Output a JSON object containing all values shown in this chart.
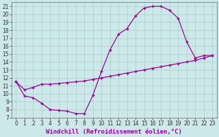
{
  "bg_color": "#cce8e8",
  "grid_color": "#aacccc",
  "line_color": "#990099",
  "xlabel": "Windchill (Refroidissement éolien,°C)",
  "xlabel_color": "#990099",
  "xlim": [
    -0.5,
    23.5
  ],
  "ylim": [
    7,
    21.5
  ],
  "xticks": [
    0,
    1,
    2,
    3,
    4,
    5,
    6,
    7,
    8,
    9,
    10,
    11,
    12,
    13,
    14,
    15,
    16,
    17,
    18,
    19,
    20,
    21,
    22,
    23
  ],
  "yticks": [
    7,
    8,
    9,
    10,
    11,
    12,
    13,
    14,
    15,
    16,
    17,
    18,
    19,
    20,
    21
  ],
  "curve1_x": [
    0,
    1,
    2,
    3,
    4,
    5,
    6,
    7,
    8,
    9,
    10,
    11,
    12,
    13,
    14,
    15,
    16,
    17,
    18,
    19,
    20,
    21
  ],
  "curve1_y": [
    11.5,
    9.7,
    9.5,
    8.8,
    8.0,
    7.9,
    7.8,
    7.5,
    7.5,
    9.8,
    12.8,
    15.5,
    17.5,
    18.2,
    19.8,
    20.8,
    21.0,
    21.0,
    20.5,
    19.5,
    16.5,
    14.5
  ],
  "curve2_x": [
    0,
    1,
    2,
    3,
    4,
    5,
    6,
    7,
    8,
    9,
    10,
    11,
    12,
    13,
    14,
    15,
    16,
    17,
    18,
    19,
    20,
    21,
    22,
    23
  ],
  "curve2_y": [
    11.5,
    10.5,
    10.8,
    11.2,
    11.2,
    11.3,
    11.4,
    11.5,
    11.6,
    11.8,
    12.0,
    12.2,
    12.4,
    12.6,
    12.8,
    13.0,
    13.2,
    13.4,
    13.6,
    13.8,
    14.0,
    14.2,
    14.5,
    14.8
  ],
  "curve3_x": [
    21,
    22,
    23
  ],
  "curve3_y": [
    14.5,
    14.8,
    14.8
  ],
  "tick_fontsize": 5.5,
  "xlabel_fontsize": 6.5,
  "xlabel_fontweight": "bold"
}
